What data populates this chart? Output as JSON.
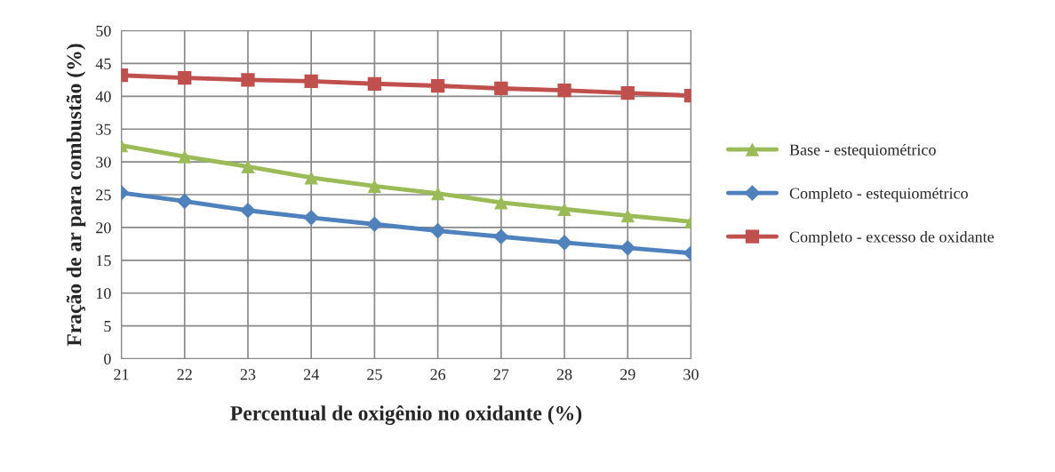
{
  "chart_data": {
    "type": "line",
    "xlabel": "Percentual de oxigênio no oxidante (%)",
    "ylabel": "Fração de ar para combustão (%)",
    "x": [
      21,
      22,
      23,
      24,
      25,
      26,
      27,
      28,
      29,
      30
    ],
    "series": [
      {
        "name": "Base - estequiométrico",
        "color": "#9bbb59",
        "marker": "triangle",
        "values": [
          32.5,
          30.8,
          29.3,
          27.6,
          26.3,
          25.2,
          23.8,
          22.8,
          21.8,
          20.9
        ]
      },
      {
        "name": "Completo - estequiométrico",
        "color": "#4f81bd",
        "marker": "diamond",
        "values": [
          25.3,
          24.0,
          22.6,
          21.5,
          20.5,
          19.5,
          18.6,
          17.7,
          16.9,
          16.1
        ]
      },
      {
        "name": "Completo - excesso de oxidante",
        "color": "#c0504d",
        "marker": "square",
        "values": [
          43.2,
          42.8,
          42.5,
          42.3,
          41.9,
          41.6,
          41.2,
          40.9,
          40.5,
          40.1
        ]
      }
    ],
    "xlim": [
      21,
      30
    ],
    "xticks": [
      21,
      22,
      23,
      24,
      25,
      26,
      27,
      28,
      29,
      30
    ],
    "ylim": [
      0,
      50
    ],
    "yticks": [
      0,
      5,
      10,
      15,
      20,
      25,
      30,
      35,
      40,
      45,
      50
    ],
    "grid": true,
    "legend": "right",
    "line_style": "solid"
  }
}
